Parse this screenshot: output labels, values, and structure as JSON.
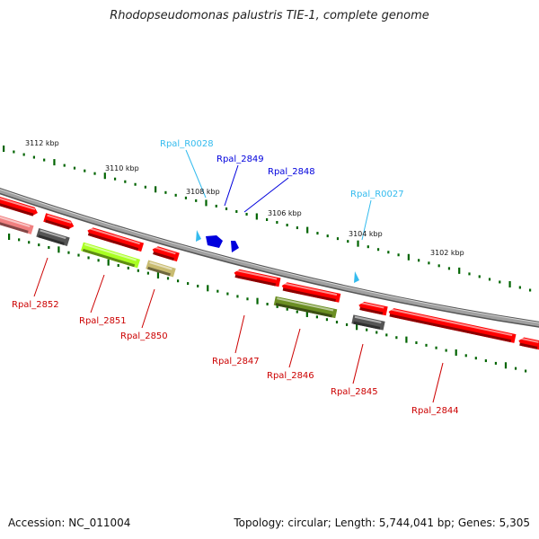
{
  "title": "Rhodopseudomonas palustris TIE-1, complete genome",
  "footer": {
    "accession": "Accession: NC_011004",
    "summary": "Topology: circular; Length: 5,744,041 bp; Genes: 5,305"
  },
  "colors": {
    "cds": "#ff0000",
    "cds_light": "#f08080",
    "trna": "#33bbee",
    "hypothetical": "#0000dd",
    "pseudo": "#555555",
    "olive": "#6b8e23",
    "lime": "#aaff22",
    "khaki": "#c8bb70",
    "tick": "#006400",
    "backbone": "#808080"
  },
  "ticks": [
    {
      "label": "3112 kbp"
    },
    {
      "label": "3110 kbp"
    },
    {
      "label": "3108 kbp"
    },
    {
      "label": "3106 kbp"
    },
    {
      "label": "3104 kbp"
    },
    {
      "label": "3102 kbp"
    }
  ],
  "labels": [
    {
      "text": "Rpal_R0028",
      "type": "trna"
    },
    {
      "text": "Rpal_2849",
      "type": "hypothetical"
    },
    {
      "text": "Rpal_2848",
      "type": "hypothetical"
    },
    {
      "text": "Rpal_R0027",
      "type": "trna"
    },
    {
      "text": "Rpal_2852",
      "type": "cds"
    },
    {
      "text": "Rpal_2851",
      "type": "cds"
    },
    {
      "text": "Rpal_2850",
      "type": "cds"
    },
    {
      "text": "Rpal_2847",
      "type": "cds"
    },
    {
      "text": "Rpal_2846",
      "type": "cds"
    },
    {
      "text": "Rpal_2845",
      "type": "cds"
    },
    {
      "text": "Rpal_2844",
      "type": "cds"
    }
  ]
}
